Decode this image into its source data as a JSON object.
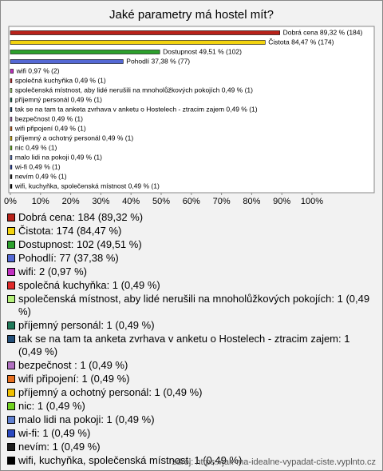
{
  "chart_data": {
    "type": "bar",
    "orientation": "horizontal",
    "title": "Jaké parametry má hostel mít?",
    "categories": [
      "Dobrá cena",
      "Čistota",
      "Dostupnost",
      "Pohodlí",
      "wifi",
      "společná kuchyňka",
      "společenská místnost, aby lidé nerušili na mnoholůžkových pokojích",
      "příjemný personál",
      "tak se na tam ta anketa zvrhava v anketu o Hostelech - ztracim zajem",
      "bezpečnost ",
      "wifi připojení",
      "příjemný a ochotný personál",
      "nic",
      "malo lidi na pokoji",
      "wi-fi",
      "nevím",
      "wifi, kuchyňka, společenská místnost"
    ],
    "values": [
      89.32,
      84.47,
      49.51,
      37.38,
      0.97,
      0.49,
      0.49,
      0.49,
      0.49,
      0.49,
      0.49,
      0.49,
      0.49,
      0.49,
      0.49,
      0.49,
      0.49
    ],
    "value_labels": [
      "Dobrá cena 89,32 % (184)",
      "Čistota 84,47 % (174)",
      "Dostupnost 49,51 % (102)",
      "Pohodlí 37,38 % (77)",
      "wifi 0,97 % (2)",
      "společná kuchyňka 0,49 % (1)",
      "společenská místnost, aby lidé nerušili na mnoholůžkových pokojích 0,49 % (1)",
      "příjemný personál 0,49 % (1)",
      "tak se na tam ta anketa zvrhava v anketu o Hostelech - ztracim zajem 0,49 % (1)",
      "bezpečnost  0,49 % (1)",
      "wifi připojení 0,49 % (1)",
      "příjemný a ochotný personál 0,49 % (1)",
      "nic 0,49 % (1)",
      "malo lidi na pokoji 0,49 % (1)",
      "wi-fi 0,49 % (1)",
      "nevím 0,49 % (1)",
      "wifi, kuchyňka, společenská místnost 0,49 % (1)"
    ],
    "legend_labels": [
      "Dobrá cena: 184 (89,32 %)",
      "Čistota: 174 (84,47 %)",
      "Dostupnost: 102 (49,51 %)",
      "Pohodlí: 77 (37,38 %)",
      "wifi: 2 (0,97 %)",
      "společná kuchyňka: 1 (0,49 %)",
      "společenská místnost, aby lidé nerušili na mnoholůžkových pokojích: 1 (0,49 %)",
      "příjemný personál: 1 (0,49 %)",
      "tak se na tam ta anketa zvrhava v anketu o Hostelech - ztracim zajem: 1 (0,49 %)",
      "bezpečnost : 1 (0,49 %)",
      "wifi připojení: 1 (0,49 %)",
      "příjemný a ochotný personál: 1 (0,49 %)",
      "nic: 1 (0,49 %)",
      "malo lidi na pokoji: 1 (0,49 %)",
      "wi-fi: 1 (0,49 %)",
      "nevím: 1 (0,49 %)",
      "wifi, kuchyňka, společenská místnost: 1 (0,49 %)"
    ],
    "colors": [
      "#b8221a",
      "#f2d30f",
      "#2ca02c",
      "#5468d4",
      "#c030c0",
      "#e02a2a",
      "#b4f07a",
      "#1f7a5a",
      "#24507a",
      "#b070c0",
      "#e87020",
      "#f0c000",
      "#70d020",
      "#6080d0",
      "#2a48c0",
      "#1e1e1e",
      "#000000"
    ],
    "xlim": [
      0,
      120
    ],
    "xticks": [
      {
        "value": 0,
        "label": "0%"
      },
      {
        "value": 10,
        "label": "10%"
      },
      {
        "value": 20,
        "label": "20%"
      },
      {
        "value": 30,
        "label": "30%"
      },
      {
        "value": 40,
        "label": "40%"
      },
      {
        "value": 50,
        "label": "50%"
      },
      {
        "value": 60,
        "label": "60%"
      },
      {
        "value": 70,
        "label": "70%"
      },
      {
        "value": 80,
        "label": "80%"
      },
      {
        "value": 90,
        "label": "90%"
      },
      {
        "value": 100,
        "label": "100%"
      }
    ],
    "grid": false,
    "source": "zdroj: https://jak-ma-idealne-vypadat-ciste.vyplnto.cz"
  }
}
